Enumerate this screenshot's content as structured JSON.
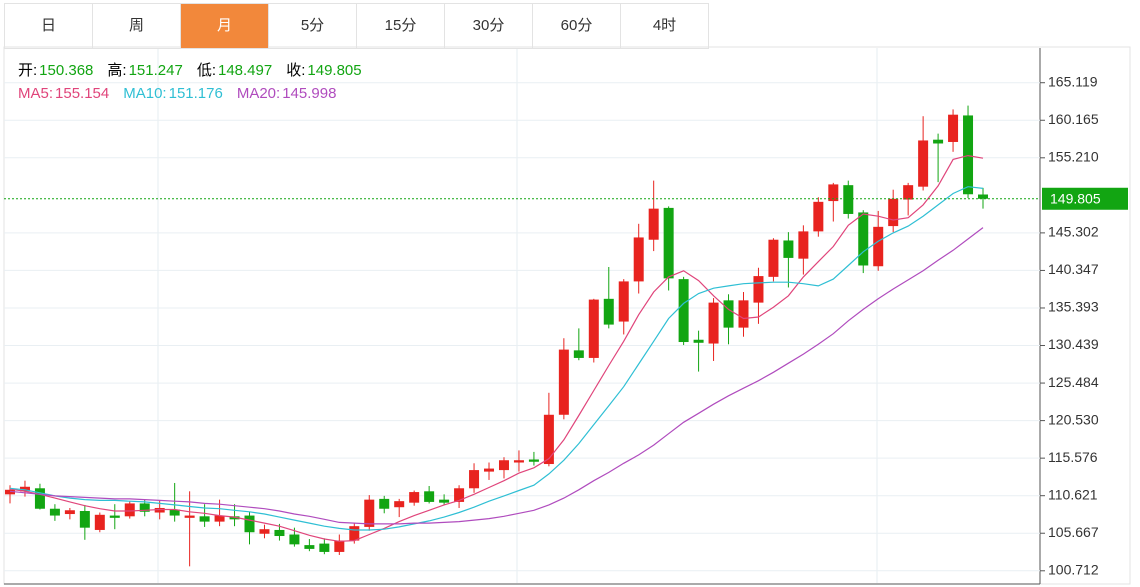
{
  "tabs": {
    "items": [
      "日",
      "周",
      "月",
      "5分",
      "15分",
      "30分",
      "60分",
      "4时"
    ],
    "active": 2
  },
  "chart_data": {
    "type": "candlestick",
    "labels": {
      "open": "开:",
      "high": "高:",
      "low": "低:",
      "close": "收:"
    },
    "up_color": "#e8231f",
    "down_color": "#12a512",
    "open": [
      110.8,
      111.2,
      111.6,
      108.9,
      108.2,
      108.6,
      106.1,
      108.0,
      107.9,
      109.6,
      108.4,
      108.8,
      107.7,
      107.9,
      107.2,
      107.9,
      108.0,
      105.6,
      106.1,
      105.5,
      104.1,
      104.3,
      103.2,
      104.7,
      106.5,
      110.2,
      109.1,
      109.7,
      111.2,
      110.1,
      109.8,
      111.6,
      113.8,
      114.0,
      115.0,
      115.4,
      114.8,
      121.3,
      129.8,
      128.8,
      136.6,
      133.6,
      138.9,
      144.4,
      148.6,
      139.2,
      131.2,
      130.7,
      136.4,
      132.8,
      136.1,
      139.5,
      144.3,
      141.9,
      145.5,
      149.5,
      151.6,
      148.0,
      140.9,
      146.2,
      149.7,
      151.4,
      157.6,
      157.3,
      160.8,
      150.368
    ],
    "high": [
      112.0,
      112.6,
      112.2,
      109.5,
      109.0,
      109.4,
      108.4,
      109.5,
      109.9,
      110.1,
      110.0,
      112.3,
      111.2,
      109.5,
      110.1,
      109.5,
      108.5,
      106.8,
      106.9,
      106.4,
      104.9,
      105.0,
      105.5,
      107.0,
      110.7,
      110.6,
      110.2,
      111.3,
      111.9,
      110.8,
      112.0,
      114.9,
      115.0,
      115.7,
      116.6,
      116.4,
      124.2,
      131.4,
      132.7,
      136.6,
      140.8,
      139.2,
      146.5,
      152.2,
      148.8,
      139.5,
      132.4,
      136.7,
      137.2,
      137.5,
      140.7,
      144.6,
      145.4,
      146.3,
      150.0,
      151.9,
      152.2,
      148.3,
      148.2,
      151.0,
      151.9,
      160.7,
      158.4,
      161.6,
      162.1,
      151.247
    ],
    "low": [
      109.6,
      110.5,
      108.8,
      107.3,
      107.5,
      104.8,
      105.8,
      106.2,
      107.6,
      107.9,
      107.5,
      107.2,
      101.3,
      106.5,
      106.6,
      106.6,
      104.2,
      105.0,
      104.7,
      103.9,
      103.3,
      102.9,
      102.8,
      104.3,
      106.0,
      108.3,
      107.8,
      109.3,
      109.6,
      109.4,
      109.0,
      111.0,
      112.7,
      112.9,
      113.8,
      114.6,
      114.5,
      120.7,
      128.5,
      128.2,
      132.7,
      131.9,
      137.3,
      142.9,
      137.7,
      130.5,
      127.0,
      128.4,
      130.6,
      131.6,
      133.3,
      138.9,
      138.1,
      139.8,
      144.8,
      146.8,
      147.2,
      140.0,
      140.3,
      145.4,
      147.6,
      150.9,
      152.0,
      156.0,
      149.9,
      148.497
    ],
    "close": [
      111.4,
      111.8,
      108.9,
      108.0,
      108.7,
      106.4,
      108.1,
      107.7,
      109.6,
      108.5,
      109.0,
      108.0,
      108.0,
      107.2,
      108.0,
      107.5,
      105.8,
      106.2,
      105.3,
      104.2,
      103.6,
      103.2,
      104.7,
      106.6,
      110.1,
      108.9,
      109.9,
      111.1,
      109.8,
      109.7,
      111.6,
      114.0,
      114.2,
      115.3,
      115.3,
      115.1,
      121.3,
      129.9,
      128.8,
      136.5,
      133.2,
      138.9,
      144.7,
      148.5,
      139.3,
      130.9,
      130.8,
      136.1,
      132.8,
      136.4,
      139.6,
      144.4,
      142.0,
      145.5,
      149.4,
      151.7,
      147.8,
      141.0,
      146.1,
      149.8,
      151.6,
      157.5,
      157.1,
      160.9,
      150.4,
      149.805
    ],
    "series": [
      {
        "name": "MA5:",
        "color": "#e0457b",
        "values": [
          111.5,
          111.2,
          110.8,
          110.3,
          109.8,
          109.3,
          108.9,
          108.6,
          108.6,
          108.7,
          108.8,
          108.8,
          108.5,
          108.3,
          108.0,
          107.8,
          107.4,
          107.0,
          106.6,
          106.0,
          105.4,
          104.9,
          104.6,
          104.7,
          105.5,
          106.3,
          107.2,
          108.0,
          108.7,
          109.4,
          110.0,
          110.8,
          111.7,
          112.6,
          113.6,
          114.3,
          115.5,
          118.0,
          121.2,
          124.5,
          127.8,
          131.0,
          134.5,
          137.5,
          139.5,
          140.3,
          139.0,
          137.0,
          135.2,
          134.0,
          134.2,
          135.5,
          137.0,
          139.5,
          141.5,
          143.5,
          146.3,
          147.8,
          147.5,
          147.0,
          147.3,
          149.0,
          151.5,
          155.0,
          155.5,
          155.154
        ]
      },
      {
        "name": "MA10:",
        "color": "#2fbfd4",
        "values": [
          111.6,
          111.4,
          111.0,
          110.6,
          110.3,
          110.1,
          110.0,
          110.0,
          109.9,
          109.8,
          109.6,
          109.4,
          109.2,
          109.0,
          108.9,
          108.7,
          108.5,
          108.2,
          107.8,
          107.4,
          107.0,
          106.6,
          106.3,
          106.1,
          106.1,
          106.2,
          106.5,
          106.9,
          107.3,
          107.8,
          108.4,
          109.1,
          109.9,
          110.6,
          111.3,
          112.0,
          113.5,
          115.3,
          117.5,
          120.0,
          122.5,
          125.0,
          128.0,
          131.0,
          134.0,
          136.0,
          137.3,
          138.0,
          138.3,
          138.6,
          138.7,
          138.8,
          138.8,
          138.6,
          138.3,
          139.2,
          141.0,
          142.8,
          144.2,
          145.3,
          146.2,
          147.5,
          149.0,
          150.5,
          151.4,
          151.176
        ]
      },
      {
        "name": "MA20:",
        "color": "#b04cbe",
        "values": [
          111.2,
          111.0,
          110.8,
          110.6,
          110.5,
          110.4,
          110.3,
          110.2,
          110.2,
          110.1,
          110.0,
          109.9,
          109.8,
          109.6,
          109.5,
          109.3,
          109.1,
          108.9,
          108.6,
          108.2,
          107.9,
          107.5,
          107.1,
          107.0,
          106.9,
          106.9,
          106.9,
          107.0,
          107.0,
          107.1,
          107.2,
          107.4,
          107.6,
          107.9,
          108.3,
          108.7,
          109.4,
          110.3,
          111.4,
          112.6,
          113.7,
          114.9,
          116.0,
          117.3,
          118.8,
          120.3,
          121.5,
          122.7,
          123.8,
          124.8,
          125.8,
          126.9,
          128.1,
          129.3,
          130.6,
          132.0,
          133.7,
          135.2,
          136.6,
          137.9,
          139.1,
          140.3,
          141.7,
          143.0,
          144.5,
          145.998
        ]
      }
    ],
    "ylim": [
      99.1,
      169.7
    ],
    "yticks": [
      100.712,
      105.667,
      110.621,
      115.576,
      {
        "value": 120.53,
        "label": "120.530"
      },
      125.484,
      130.439,
      135.393,
      140.347,
      145.302,
      {
        "value": 155.21,
        "label": "155.210"
      },
      160.165,
      165.119
    ],
    "grid": true
  }
}
